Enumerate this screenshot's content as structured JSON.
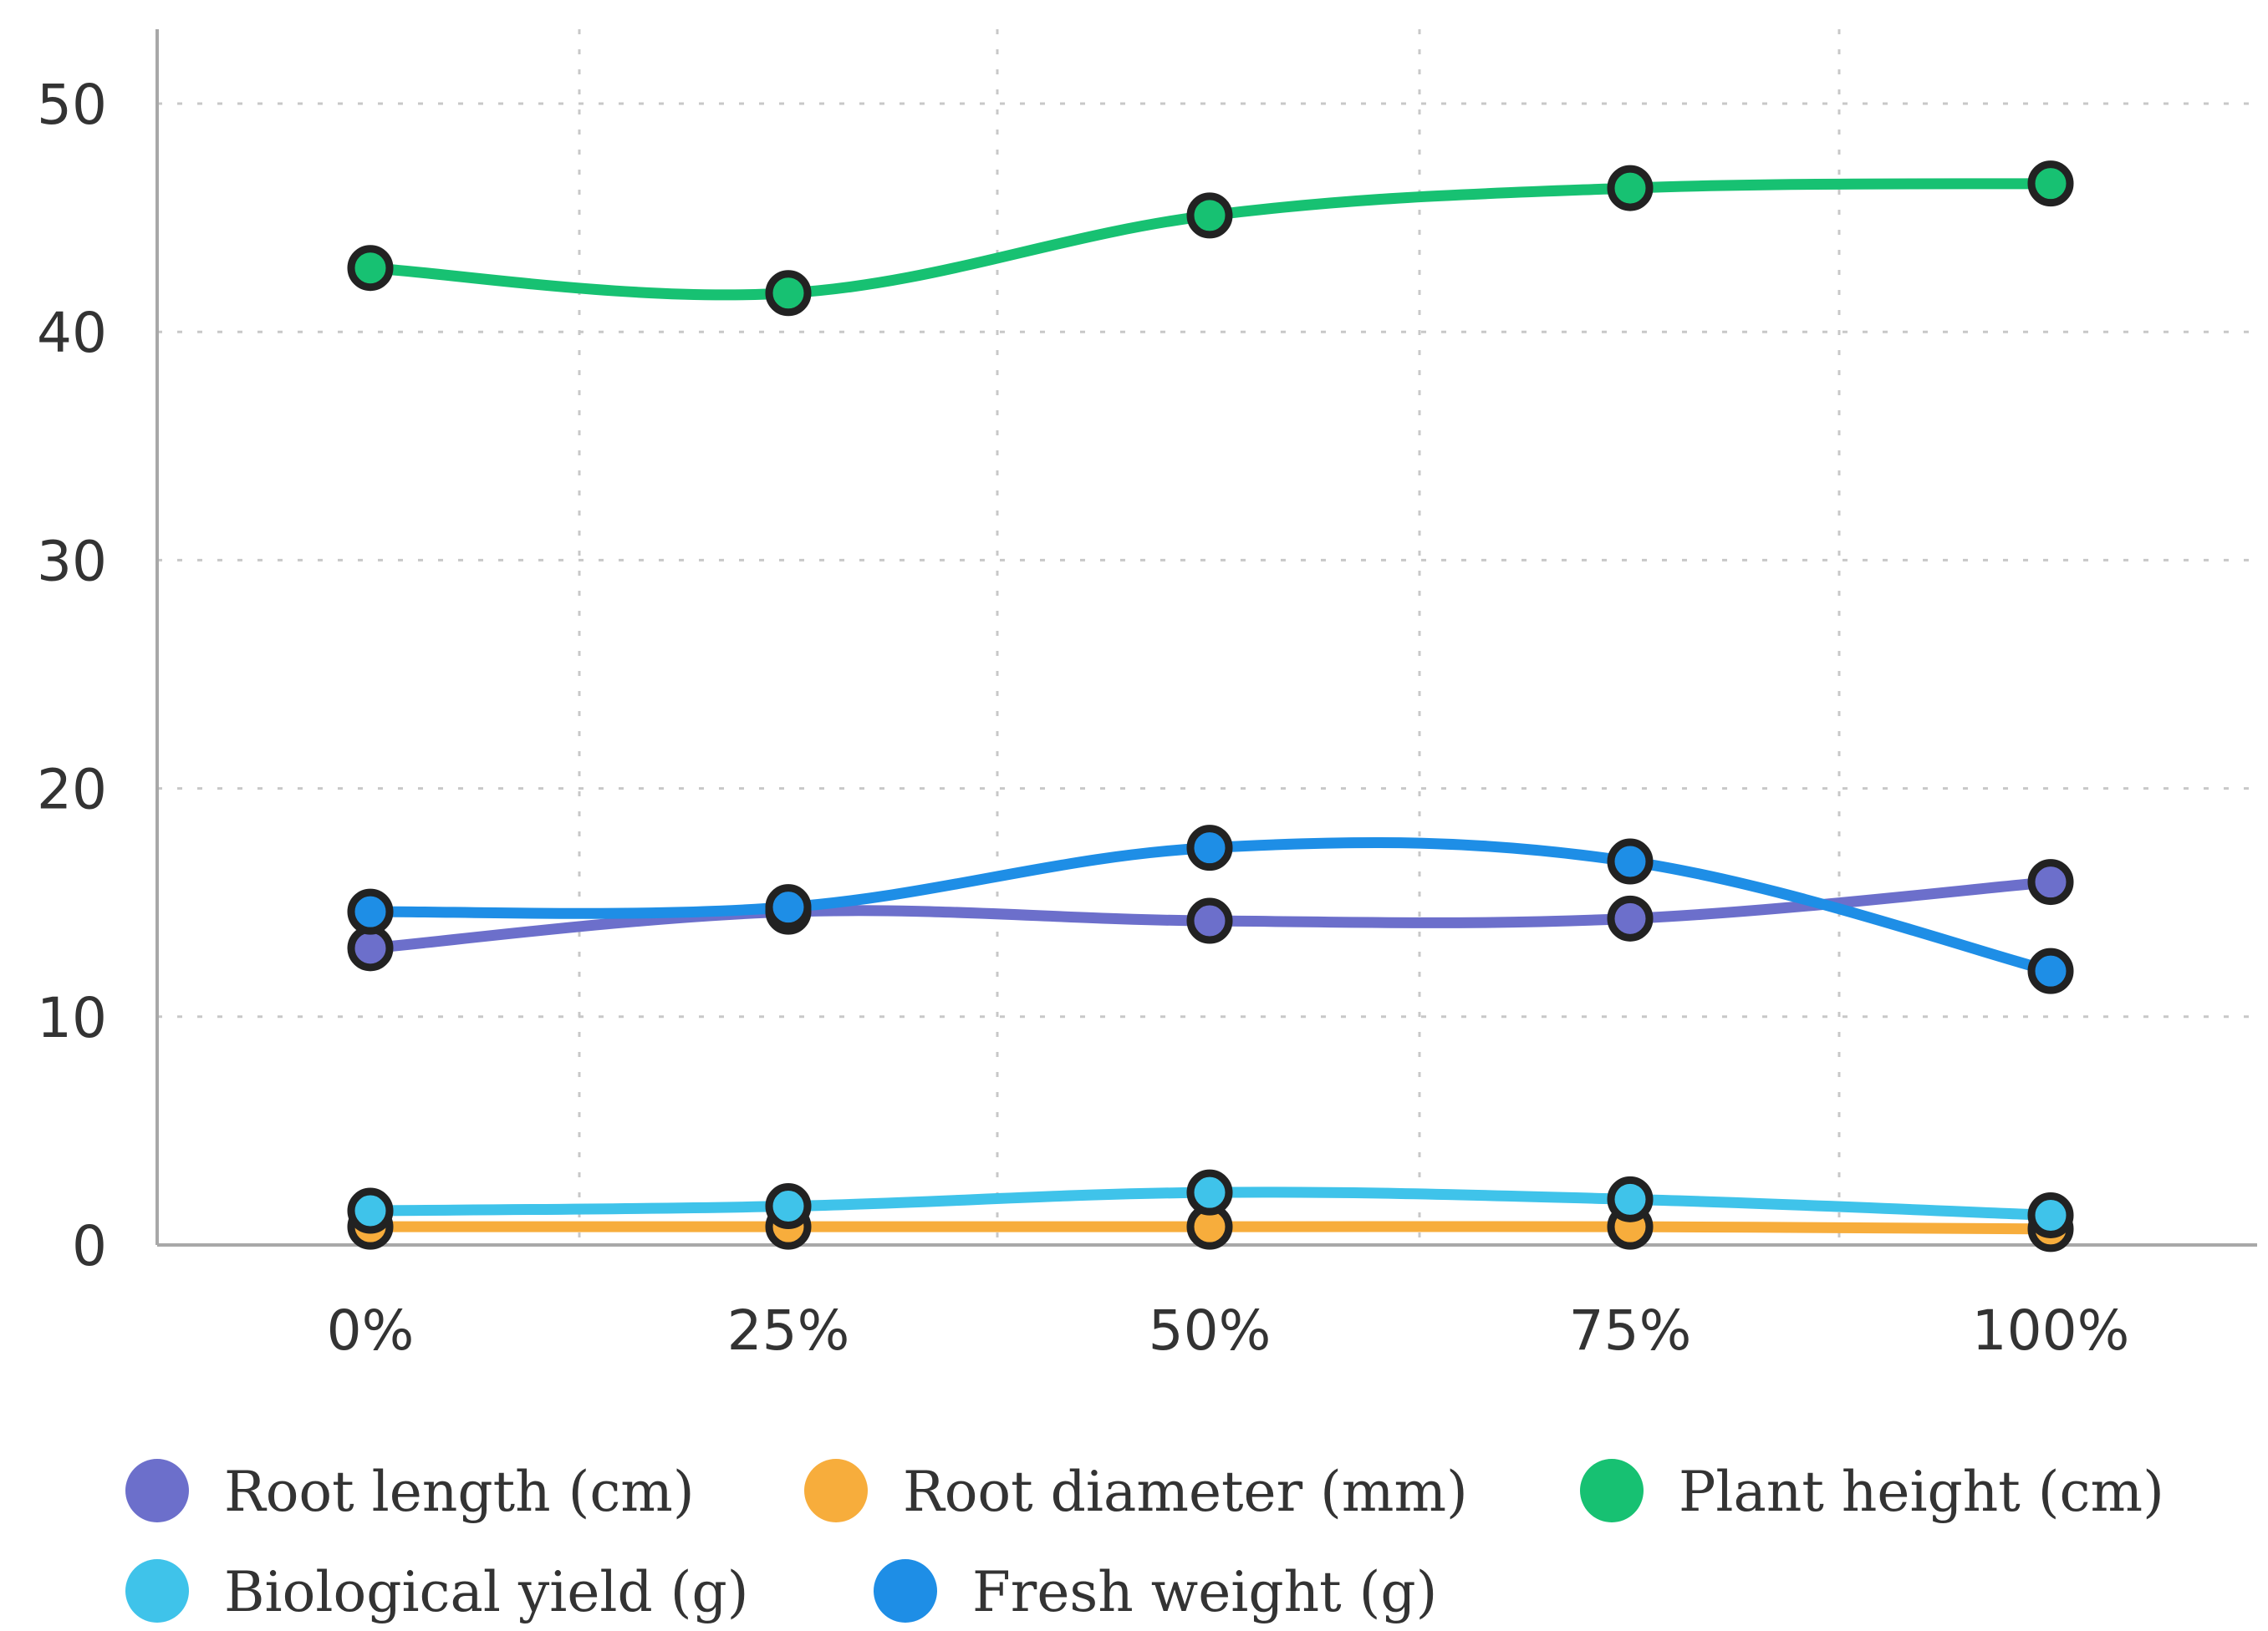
{
  "chart_data": {
    "type": "line",
    "title": "",
    "xlabel": "",
    "ylabel": "",
    "categories": [
      "0%",
      "25%",
      "50%",
      "75%",
      "100%"
    ],
    "ylim": [
      0,
      53
    ],
    "yticks": [
      0,
      10,
      20,
      30,
      40,
      50
    ],
    "grid": true,
    "legend_position": "bottom",
    "series": [
      {
        "name": "Root length (cm)",
        "color": "#6c6fcb",
        "values": [
          13.0,
          14.6,
          14.2,
          14.3,
          15.9
        ]
      },
      {
        "name": "Root diameter (mm)",
        "color": "#f7ad3c",
        "values": [
          0.8,
          0.8,
          0.8,
          0.8,
          0.7
        ]
      },
      {
        "name": "Plant height (cm)",
        "color": "#17c172",
        "values": [
          42.8,
          41.7,
          45.1,
          46.3,
          46.5
        ]
      },
      {
        "name": "Biological yield (g)",
        "color": "#3fc3ea",
        "values": [
          1.5,
          1.7,
          2.3,
          2.0,
          1.3
        ]
      },
      {
        "name": "Fresh weight (g)",
        "color": "#1e8ee6",
        "values": [
          14.6,
          14.8,
          17.4,
          16.8,
          12.0
        ]
      }
    ]
  }
}
